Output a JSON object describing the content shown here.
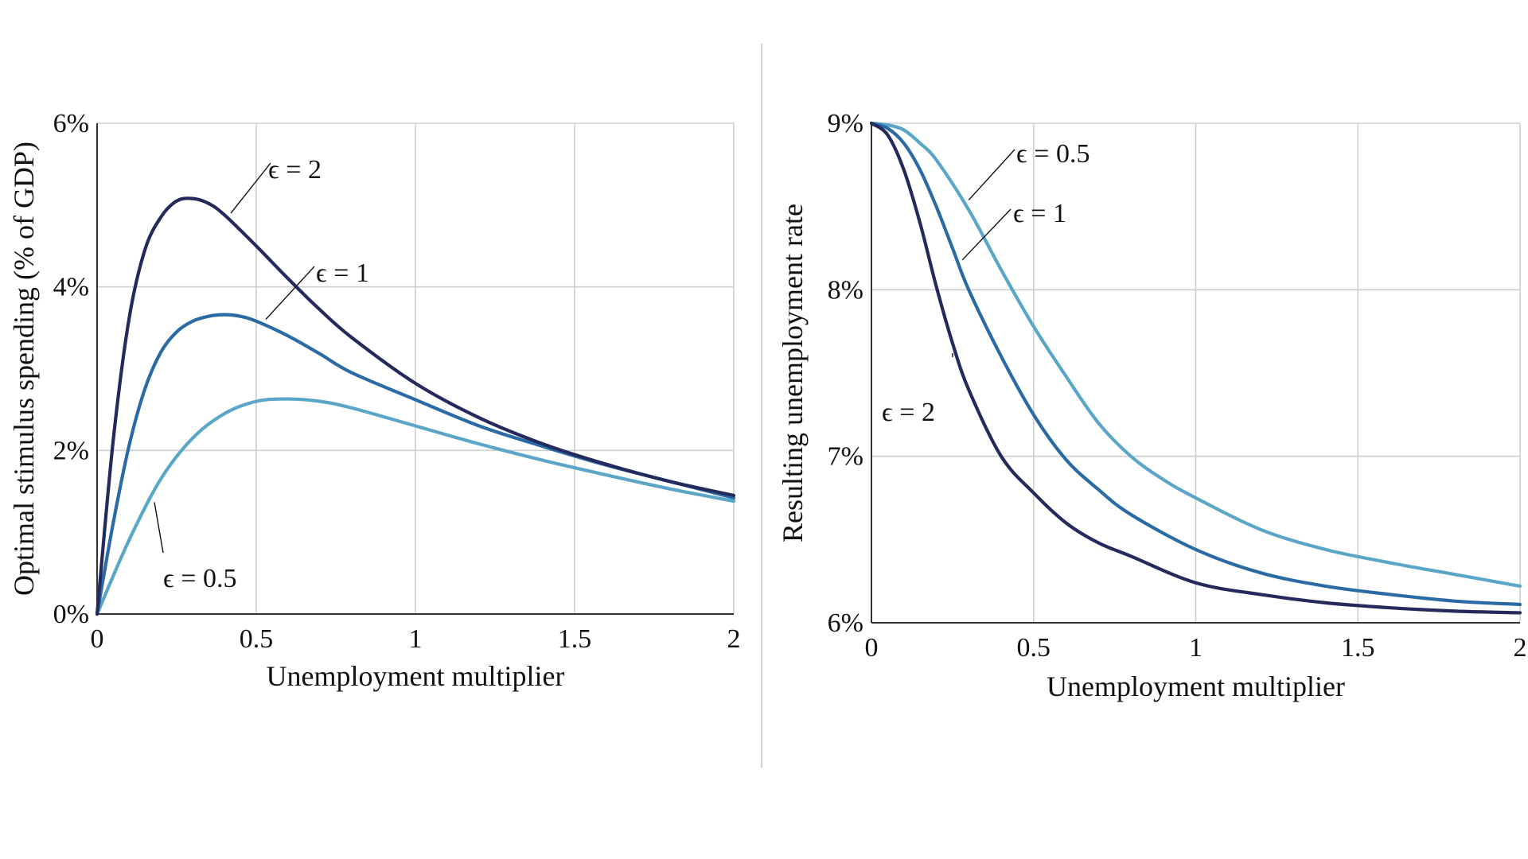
{
  "chart_data": [
    {
      "type": "line",
      "xlabel": "Unemployment multiplier",
      "ylabel": "Optimal stimulus spending (% of GDP)",
      "xlim": [
        0,
        2
      ],
      "ylim": [
        0,
        6
      ],
      "xticks": [
        "0",
        "0.5",
        "1",
        "1.5",
        "2"
      ],
      "xtick_values": [
        0,
        0.5,
        1,
        1.5,
        2
      ],
      "yticks": [
        "0%",
        "2%",
        "4%",
        "6%"
      ],
      "ytick_values": [
        0,
        2,
        4,
        6
      ],
      "grid": true,
      "series": [
        {
          "name": "ϵ = 2",
          "color": "#242a5c",
          "x": [
            0,
            0.05,
            0.1,
            0.15,
            0.2,
            0.25,
            0.3,
            0.35,
            0.4,
            0.5,
            0.6,
            0.7,
            0.8,
            1.0,
            1.2,
            1.4,
            1.6,
            1.8,
            2.0
          ],
          "y": [
            0,
            2.1,
            3.6,
            4.45,
            4.85,
            5.05,
            5.08,
            5.02,
            4.88,
            4.5,
            4.1,
            3.72,
            3.38,
            2.82,
            2.4,
            2.08,
            1.83,
            1.62,
            1.45
          ]
        },
        {
          "name": "ϵ = 1",
          "color": "#2a6aa5",
          "x": [
            0,
            0.05,
            0.1,
            0.15,
            0.2,
            0.25,
            0.3,
            0.35,
            0.4,
            0.45,
            0.5,
            0.6,
            0.7,
            0.8,
            1.0,
            1.2,
            1.4,
            1.6,
            1.8,
            2.0
          ],
          "y": [
            0,
            1.1,
            2.05,
            2.75,
            3.2,
            3.45,
            3.58,
            3.64,
            3.66,
            3.64,
            3.58,
            3.4,
            3.18,
            2.95,
            2.62,
            2.3,
            2.05,
            1.82,
            1.62,
            1.42
          ]
        },
        {
          "name": "ϵ = 0.5",
          "color": "#5aa6c8",
          "x": [
            0,
            0.1,
            0.2,
            0.3,
            0.4,
            0.5,
            0.6,
            0.7,
            0.8,
            1.0,
            1.2,
            1.4,
            1.6,
            1.8,
            2.0
          ],
          "y": [
            0,
            0.9,
            1.65,
            2.15,
            2.45,
            2.6,
            2.63,
            2.6,
            2.52,
            2.3,
            2.08,
            1.88,
            1.7,
            1.53,
            1.38
          ]
        }
      ],
      "annotations": [
        {
          "text": "ϵ = 2",
          "series": "ϵ = 2",
          "at_x": 0.41
        },
        {
          "text": "ϵ = 1",
          "series": "ϵ = 1",
          "at_x": 0.52
        },
        {
          "text": "ϵ = 0.5",
          "series": "ϵ = 0.5",
          "at_x": 0.17
        }
      ]
    },
    {
      "type": "line",
      "xlabel": "Unemployment multiplier",
      "ylabel": "Resulting unemployment rate",
      "xlim": [
        0,
        2
      ],
      "ylim": [
        6,
        9
      ],
      "xticks": [
        "0",
        "0.5",
        "1",
        "1.5",
        "2"
      ],
      "xtick_values": [
        0,
        0.5,
        1,
        1.5,
        2
      ],
      "yticks": [
        "6%",
        "7%",
        "8%",
        "9%"
      ],
      "ytick_values": [
        6,
        7,
        8,
        9
      ],
      "grid": true,
      "series": [
        {
          "name": "ϵ = 2",
          "color": "#242a5c",
          "x": [
            0,
            0.05,
            0.1,
            0.15,
            0.2,
            0.25,
            0.3,
            0.4,
            0.5,
            0.6,
            0.7,
            0.8,
            1.0,
            1.2,
            1.4,
            1.6,
            1.8,
            2.0
          ],
          "y": [
            9,
            8.93,
            8.72,
            8.4,
            8.02,
            7.68,
            7.4,
            7.0,
            6.78,
            6.6,
            6.48,
            6.4,
            6.24,
            6.17,
            6.12,
            6.09,
            6.07,
            6.06
          ]
        },
        {
          "name": "ϵ = 1",
          "color": "#2a6aa5",
          "x": [
            0,
            0.05,
            0.1,
            0.15,
            0.2,
            0.25,
            0.3,
            0.4,
            0.5,
            0.6,
            0.7,
            0.8,
            1.0,
            1.2,
            1.4,
            1.6,
            1.8,
            2.0
          ],
          "y": [
            9,
            8.97,
            8.88,
            8.72,
            8.5,
            8.25,
            8.0,
            7.6,
            7.25,
            6.98,
            6.8,
            6.65,
            6.44,
            6.3,
            6.22,
            6.17,
            6.13,
            6.11
          ]
        },
        {
          "name": "ϵ = 0.5",
          "color": "#5aa6c8",
          "x": [
            0,
            0.05,
            0.1,
            0.15,
            0.2,
            0.3,
            0.4,
            0.5,
            0.6,
            0.7,
            0.8,
            0.9,
            1.0,
            1.2,
            1.4,
            1.6,
            1.8,
            2.0
          ],
          "y": [
            9,
            8.99,
            8.96,
            8.88,
            8.78,
            8.48,
            8.12,
            7.78,
            7.48,
            7.2,
            7.0,
            6.86,
            6.75,
            6.56,
            6.44,
            6.36,
            6.29,
            6.22
          ]
        }
      ],
      "annotations": [
        {
          "text": "ϵ = 0.5",
          "series": "ϵ = 0.5",
          "at_x": 0.29
        },
        {
          "text": "ϵ = 1",
          "series": "ϵ = 1",
          "at_x": 0.27
        },
        {
          "text": "ϵ = 2",
          "series": "ϵ = 2",
          "at_x": 0.26
        }
      ]
    }
  ]
}
